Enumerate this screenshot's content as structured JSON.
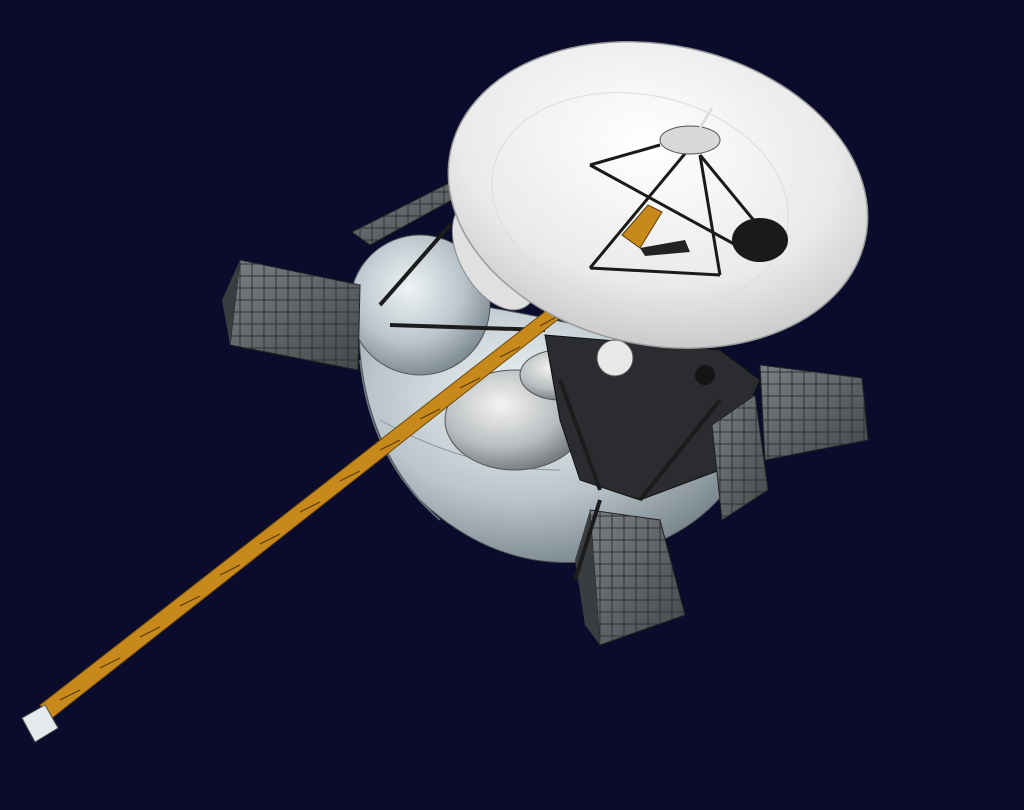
{
  "scene": {
    "subject": "spacecraft-render",
    "colors": {
      "background": "#0b0b2c",
      "hull": "#c9d3d8",
      "hull_shadow": "#7f8a90",
      "dish": "#f2f2f2",
      "truss": "#c8891c",
      "panel": "#5a5e62",
      "dark": "#1b1b1f"
    }
  }
}
